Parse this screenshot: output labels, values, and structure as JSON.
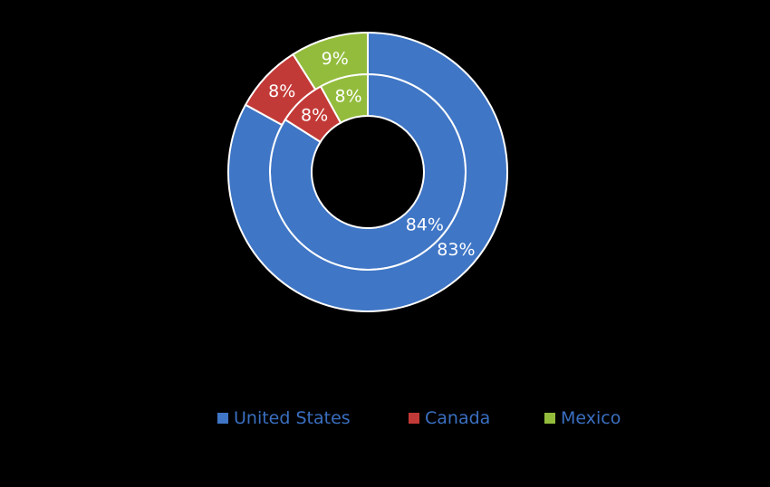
{
  "chart_data": {
    "type": "pie",
    "subtype": "doughnut",
    "categories": [
      "United States",
      "Canada",
      "Mexico"
    ],
    "colors": [
      "#3f76c6",
      "#c23a37",
      "#93bc3c"
    ],
    "series": [
      {
        "values": [
          84,
          8,
          8
        ],
        "labels": [
          "84%",
          "8%",
          "8%"
        ]
      },
      {
        "values": [
          83,
          8,
          9
        ],
        "labels": [
          "83%",
          "8%",
          "9%"
        ]
      }
    ],
    "legend_position": "bottom"
  }
}
